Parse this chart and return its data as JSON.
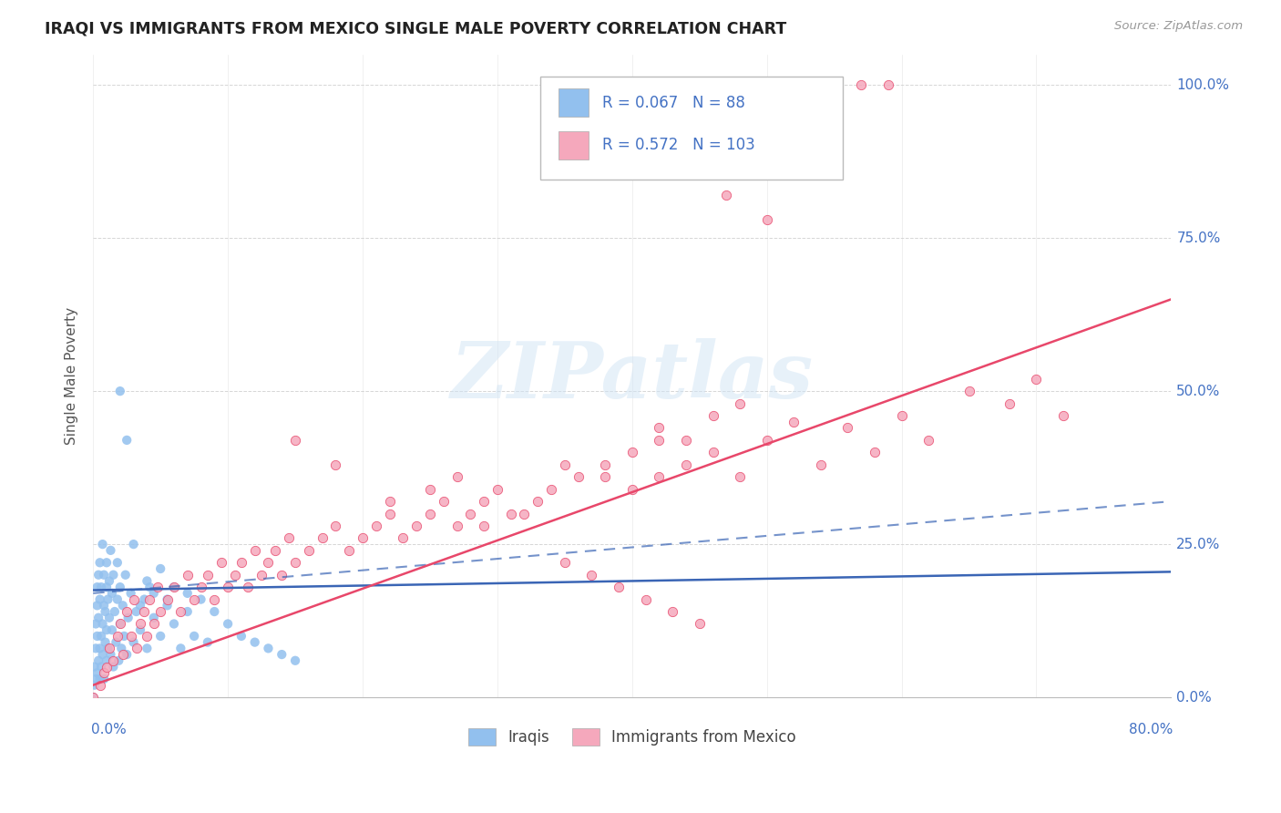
{
  "title": "IRAQI VS IMMIGRANTS FROM MEXICO SINGLE MALE POVERTY CORRELATION CHART",
  "source": "Source: ZipAtlas.com",
  "ylabel": "Single Male Poverty",
  "xlim": [
    0,
    0.8
  ],
  "ylim": [
    0,
    1.05
  ],
  "iraqi_R": "0.067",
  "iraqi_N": "88",
  "mexico_R": "0.572",
  "mexico_N": "103",
  "iraqi_color": "#92C0EE",
  "mexico_color": "#F5A8BC",
  "iraqi_line_color": "#3A65B5",
  "mexico_line_color": "#E8476A",
  "legend_label_iraqi": "Iraqis",
  "legend_label_mexico": "Immigrants from Mexico",
  "watermark_text": "ZIPatlas",
  "background_color": "#ffffff",
  "grid_color": "#cccccc",
  "title_color": "#222222",
  "axis_label_color": "#4472C4",
  "right_ytick_labels": [
    "0.0%",
    "25.0%",
    "50.0%",
    "75.0%",
    "100.0%"
  ],
  "right_ytick_vals": [
    0.0,
    0.25,
    0.5,
    0.75,
    1.0
  ],
  "iraqi_x": [
    0.0,
    0.001,
    0.001,
    0.002,
    0.002,
    0.002,
    0.003,
    0.003,
    0.003,
    0.003,
    0.004,
    0.004,
    0.004,
    0.005,
    0.005,
    0.005,
    0.005,
    0.006,
    0.006,
    0.006,
    0.007,
    0.007,
    0.007,
    0.008,
    0.008,
    0.008,
    0.009,
    0.009,
    0.01,
    0.01,
    0.01,
    0.01,
    0.011,
    0.011,
    0.012,
    0.012,
    0.013,
    0.013,
    0.014,
    0.014,
    0.015,
    0.015,
    0.016,
    0.017,
    0.018,
    0.018,
    0.019,
    0.02,
    0.02,
    0.021,
    0.022,
    0.023,
    0.024,
    0.025,
    0.026,
    0.028,
    0.03,
    0.032,
    0.035,
    0.038,
    0.04,
    0.042,
    0.045,
    0.05,
    0.055,
    0.06,
    0.065,
    0.07,
    0.075,
    0.08,
    0.085,
    0.09,
    0.1,
    0.11,
    0.12,
    0.13,
    0.14,
    0.15,
    0.03,
    0.04,
    0.05,
    0.06,
    0.07,
    0.02,
    0.025,
    0.035,
    0.045,
    0.055
  ],
  "iraqi_y": [
    0.0,
    0.02,
    0.05,
    0.08,
    0.03,
    0.12,
    0.15,
    0.04,
    0.18,
    0.1,
    0.06,
    0.13,
    0.2,
    0.16,
    0.03,
    0.08,
    0.22,
    0.1,
    0.18,
    0.05,
    0.12,
    0.25,
    0.07,
    0.15,
    0.03,
    0.2,
    0.09,
    0.14,
    0.18,
    0.06,
    0.22,
    0.11,
    0.16,
    0.08,
    0.13,
    0.19,
    0.07,
    0.24,
    0.11,
    0.17,
    0.05,
    0.2,
    0.14,
    0.09,
    0.16,
    0.22,
    0.06,
    0.12,
    0.18,
    0.08,
    0.15,
    0.1,
    0.2,
    0.07,
    0.13,
    0.17,
    0.09,
    0.14,
    0.11,
    0.16,
    0.08,
    0.18,
    0.13,
    0.1,
    0.15,
    0.12,
    0.08,
    0.14,
    0.1,
    0.16,
    0.09,
    0.14,
    0.12,
    0.1,
    0.09,
    0.08,
    0.07,
    0.06,
    0.25,
    0.19,
    0.21,
    0.18,
    0.17,
    0.5,
    0.42,
    0.15,
    0.17,
    0.16
  ],
  "mexico_x": [
    0.0,
    0.005,
    0.008,
    0.01,
    0.012,
    0.015,
    0.018,
    0.02,
    0.022,
    0.025,
    0.028,
    0.03,
    0.032,
    0.035,
    0.038,
    0.04,
    0.042,
    0.045,
    0.048,
    0.05,
    0.055,
    0.06,
    0.065,
    0.07,
    0.075,
    0.08,
    0.085,
    0.09,
    0.095,
    0.1,
    0.105,
    0.11,
    0.115,
    0.12,
    0.125,
    0.13,
    0.135,
    0.14,
    0.145,
    0.15,
    0.16,
    0.17,
    0.18,
    0.19,
    0.2,
    0.21,
    0.22,
    0.23,
    0.24,
    0.25,
    0.26,
    0.27,
    0.28,
    0.29,
    0.3,
    0.32,
    0.34,
    0.36,
    0.38,
    0.4,
    0.42,
    0.44,
    0.46,
    0.48,
    0.5,
    0.52,
    0.54,
    0.56,
    0.58,
    0.6,
    0.62,
    0.65,
    0.68,
    0.7,
    0.72,
    0.55,
    0.57,
    0.59,
    0.42,
    0.44,
    0.46,
    0.48,
    0.35,
    0.38,
    0.4,
    0.42,
    0.25,
    0.27,
    0.29,
    0.31,
    0.33,
    0.35,
    0.37,
    0.39,
    0.41,
    0.43,
    0.45,
    0.15,
    0.18,
    0.22,
    0.45,
    0.47,
    0.5
  ],
  "mexico_y": [
    0.0,
    0.02,
    0.04,
    0.05,
    0.08,
    0.06,
    0.1,
    0.12,
    0.07,
    0.14,
    0.1,
    0.16,
    0.08,
    0.12,
    0.14,
    0.1,
    0.16,
    0.12,
    0.18,
    0.14,
    0.16,
    0.18,
    0.14,
    0.2,
    0.16,
    0.18,
    0.2,
    0.16,
    0.22,
    0.18,
    0.2,
    0.22,
    0.18,
    0.24,
    0.2,
    0.22,
    0.24,
    0.2,
    0.26,
    0.22,
    0.24,
    0.26,
    0.28,
    0.24,
    0.26,
    0.28,
    0.3,
    0.26,
    0.28,
    0.3,
    0.32,
    0.28,
    0.3,
    0.32,
    0.34,
    0.3,
    0.34,
    0.36,
    0.38,
    0.34,
    0.36,
    0.38,
    0.4,
    0.36,
    0.42,
    0.45,
    0.38,
    0.44,
    0.4,
    0.46,
    0.42,
    0.5,
    0.48,
    0.52,
    0.46,
    1.0,
    1.0,
    1.0,
    0.44,
    0.42,
    0.46,
    0.48,
    0.38,
    0.36,
    0.4,
    0.42,
    0.34,
    0.36,
    0.28,
    0.3,
    0.32,
    0.22,
    0.2,
    0.18,
    0.16,
    0.14,
    0.12,
    0.42,
    0.38,
    0.32,
    0.87,
    0.82,
    0.78
  ]
}
